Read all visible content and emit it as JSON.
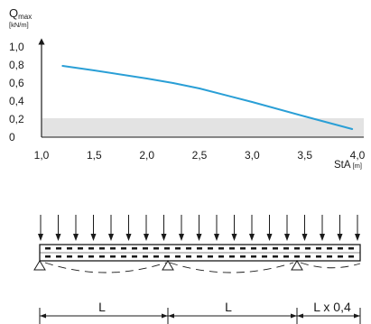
{
  "chart_data": {
    "type": "line",
    "ylabel_main": "Q",
    "ylabel_sub": "max",
    "yunit": "[kN/m]",
    "xlabel": "StA",
    "xunit": "[m]",
    "xlim": [
      1.0,
      4.0
    ],
    "ylim": [
      0,
      1.0
    ],
    "xticks": [
      "1,0",
      "1,5",
      "2,0",
      "2,5",
      "3,0",
      "3,5",
      "4,0"
    ],
    "yticks": [
      "0",
      "0,2",
      "0,4",
      "0,6",
      "0,8",
      "1,0"
    ],
    "shaded_band": {
      "y_from": 0,
      "y_to": 0.21,
      "color": "#e3e3e3"
    },
    "line_color": "#2a9fd6",
    "series": [
      {
        "x": [
          1.2,
          1.5,
          2.0,
          2.25,
          2.5,
          3.0,
          3.5,
          3.95
        ],
        "y": [
          0.79,
          0.74,
          0.65,
          0.6,
          0.54,
          0.39,
          0.23,
          0.09
        ]
      }
    ]
  },
  "beam": {
    "labels": [
      "L",
      "L",
      "L x 0,4"
    ]
  }
}
